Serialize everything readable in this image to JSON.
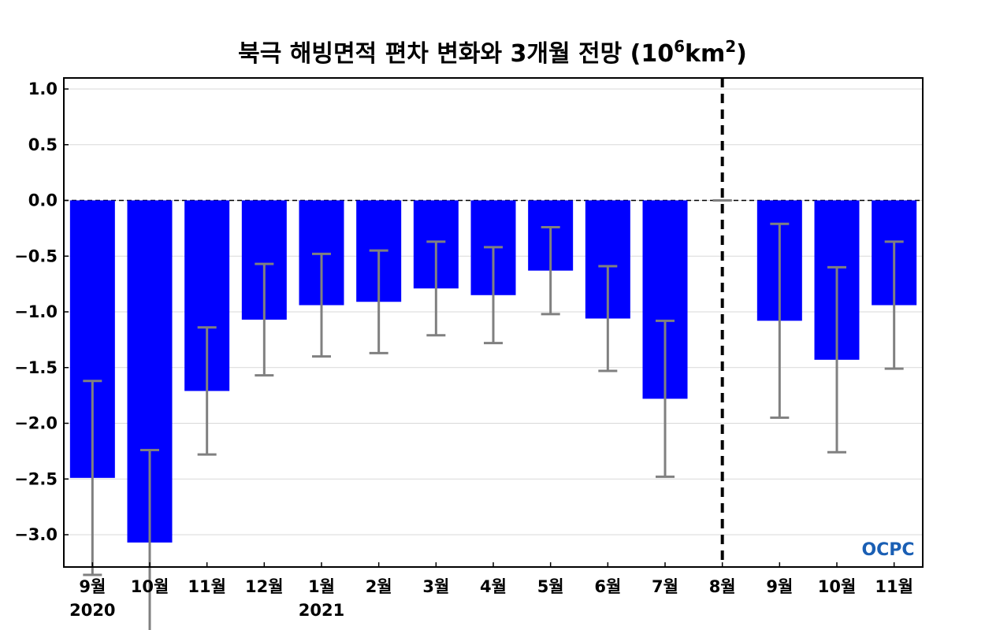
{
  "chart_data": {
    "type": "bar",
    "title_main": "북극 해빙면적 편차 변화와 3개월 전망 (10",
    "title_sup1": "6",
    "title_mid": "km",
    "title_sup2": "2",
    "title_end": ")",
    "categories": [
      "9월",
      "10월",
      "11월",
      "12월",
      "1월",
      "2월",
      "3월",
      "4월",
      "5월",
      "6월",
      "7월",
      "8월",
      "9월",
      "10월",
      "11월"
    ],
    "year_labels": [
      {
        "index": 0,
        "label": "2020"
      },
      {
        "index": 4,
        "label": "2021"
      }
    ],
    "values": [
      -2.49,
      -3.07,
      -1.71,
      -1.07,
      -0.94,
      -0.91,
      -0.79,
      -0.85,
      -0.63,
      -1.06,
      -1.78,
      0.0,
      -1.08,
      -1.43,
      -0.94
    ],
    "error": [
      0.87,
      0.83,
      0.57,
      0.5,
      0.46,
      0.46,
      0.42,
      0.43,
      0.39,
      0.47,
      0.7,
      0.0,
      0.87,
      0.83,
      0.57
    ],
    "yticks": [
      "1.0",
      "0.5",
      "0.0",
      "-0.5",
      "-1.0",
      "-1.5",
      "-2.0",
      "-2.5",
      "-3.0"
    ],
    "ylim": [
      -3.3,
      1.1
    ],
    "forecast_divider_after_index": 11,
    "grid": true,
    "colors": {
      "bar": "#0000ff",
      "error": "#808080",
      "grid": "#d9d9d9",
      "divider": "#000000"
    },
    "logo": "OCPC"
  }
}
